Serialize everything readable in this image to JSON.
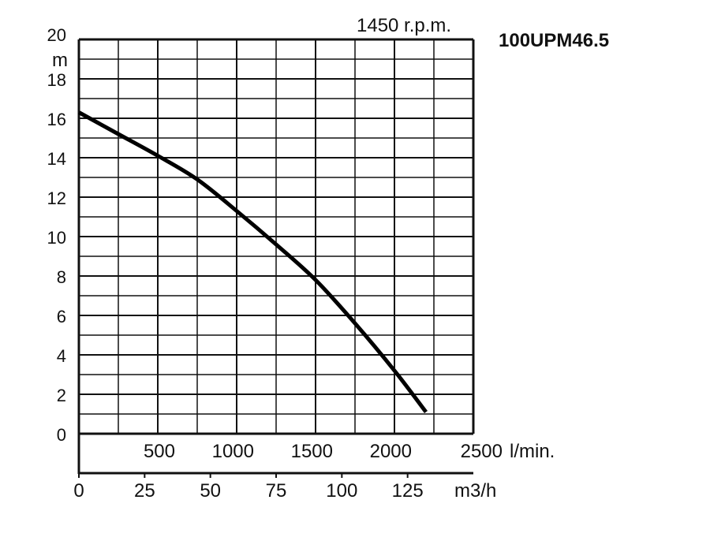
{
  "chart_data": {
    "type": "line",
    "title": "100UPM46.5",
    "subtitle": "1450 r.p.m.",
    "ylabel": "m",
    "xlabel": "l/min.",
    "x2label": "m3/h",
    "ylim": [
      0,
      20
    ],
    "xlim": [
      0,
      2500
    ],
    "yticks": [
      "0",
      "2",
      "4",
      "6",
      "8",
      "10",
      "12",
      "14",
      "16",
      "18",
      "20"
    ],
    "xticks": [
      "500",
      "1000",
      "1500",
      "2000",
      "2500"
    ],
    "x2ticks": [
      "0",
      "25",
      "50",
      "75",
      "100",
      "125"
    ],
    "grid": true,
    "series": [
      {
        "name": "100UPM46.5",
        "x": [
          0,
          250,
          500,
          750,
          1000,
          1250,
          1500,
          1750,
          2000,
          2200
        ],
        "y": [
          16.3,
          15.2,
          14.1,
          12.9,
          11.3,
          9.6,
          7.8,
          5.6,
          3.2,
          1.1
        ]
      }
    ]
  }
}
